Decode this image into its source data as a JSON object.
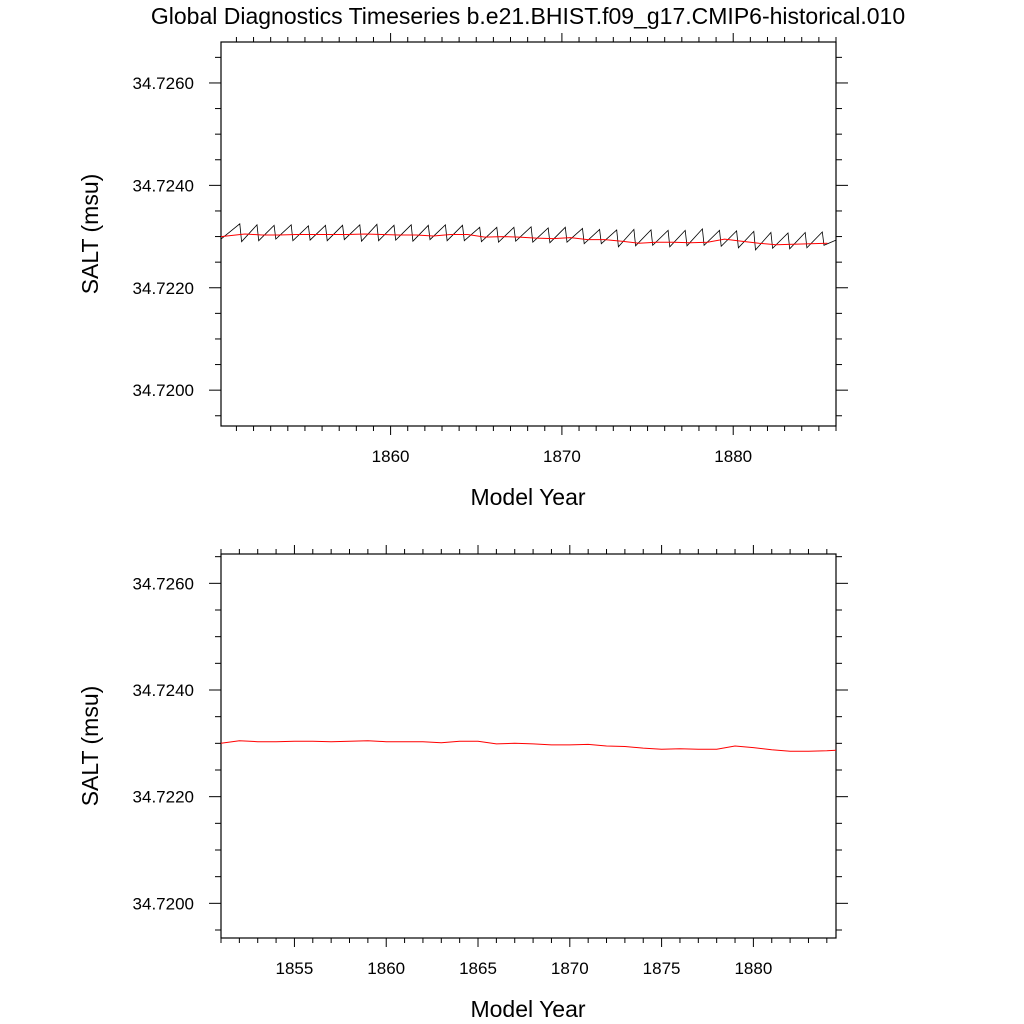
{
  "title": "Global Diagnostics Timeseries b.e21.BHIST.f09_g17.CMIP6-historical.010",
  "colors": {
    "monthly": "#000000",
    "annual": "#ff0000",
    "axes": "#000000"
  },
  "chart_data": [
    {
      "type": "line",
      "ylabel": "SALT (msu)",
      "xlabel": "Model Year",
      "xlim": [
        1850.1,
        1886.0
      ],
      "ylim": [
        34.7193,
        34.7268
      ],
      "xticks": [
        1860,
        1870,
        1880
      ],
      "xtick_labels": [
        "1860",
        "1870",
        "1880"
      ],
      "yticks": [
        34.72,
        34.722,
        34.724,
        34.726
      ],
      "ytick_labels": [
        "34.7200",
        "34.7220",
        "34.7240",
        "34.7260"
      ],
      "series": [
        {
          "kind": "monthly",
          "color": "#000000",
          "x": [
            1850.1,
            1851.2,
            1851.3,
            1852.2,
            1852.3,
            1853.2,
            1853.3,
            1854.2,
            1854.3,
            1855.2,
            1855.3,
            1856.2,
            1856.3,
            1857.2,
            1857.3,
            1858.2,
            1858.3,
            1859.2,
            1859.3,
            1860.2,
            1860.3,
            1861.2,
            1861.3,
            1862.2,
            1862.3,
            1863.2,
            1863.3,
            1864.2,
            1864.3,
            1865.2,
            1865.3,
            1866.2,
            1866.3,
            1867.2,
            1867.3,
            1868.2,
            1868.3,
            1869.2,
            1869.3,
            1870.2,
            1870.3,
            1871.2,
            1871.3,
            1872.2,
            1872.3,
            1873.2,
            1873.3,
            1874.2,
            1874.3,
            1875.2,
            1875.3,
            1876.2,
            1876.3,
            1877.2,
            1877.3,
            1878.2,
            1878.3,
            1879.2,
            1879.3,
            1880.2,
            1880.3,
            1881.2,
            1881.3,
            1882.2,
            1882.3,
            1883.2,
            1883.3,
            1884.2,
            1884.3,
            1885.2,
            1885.3,
            1886.0
          ],
          "y": [
            34.72295,
            34.72325,
            34.7229,
            34.72323,
            34.72292,
            34.72322,
            34.72295,
            34.72323,
            34.72292,
            34.72321,
            34.72293,
            34.72322,
            34.72292,
            34.72322,
            34.72294,
            34.72323,
            34.72291,
            34.72324,
            34.72292,
            34.72322,
            34.72293,
            34.72323,
            34.72291,
            34.72322,
            34.72294,
            34.72323,
            34.72292,
            34.72322,
            34.72292,
            34.72318,
            34.7229,
            34.72318,
            34.72289,
            34.72318,
            34.72291,
            34.72319,
            34.72289,
            34.72317,
            34.72288,
            34.72318,
            34.72289,
            34.72316,
            34.72286,
            34.72314,
            34.72286,
            34.72313,
            34.7228,
            34.72314,
            34.72282,
            34.72313,
            34.72283,
            34.72312,
            34.7228,
            34.72312,
            34.72282,
            34.72315,
            34.72283,
            34.72312,
            34.72281,
            34.72311,
            34.72278,
            34.7231,
            34.72274,
            34.72308,
            34.72277,
            34.72307,
            34.72276,
            34.72308,
            34.72278,
            34.72309,
            34.72283,
            34.72293
          ]
        },
        {
          "kind": "annual",
          "color": "#ff0000",
          "x": [
            1850.1,
            1851.5,
            1852.5,
            1853.5,
            1854.5,
            1855.5,
            1856.5,
            1857.5,
            1858.5,
            1859.5,
            1860.5,
            1861.5,
            1862.5,
            1863.5,
            1864.5,
            1865.5,
            1866.5,
            1867.5,
            1868.5,
            1869.5,
            1870.5,
            1871.5,
            1872.5,
            1873.5,
            1874.5,
            1875.5,
            1876.5,
            1877.5,
            1878.5,
            1879.5,
            1880.5,
            1881.5,
            1882.5,
            1883.5,
            1884.5,
            1885.5
          ],
          "y": [
            34.723,
            34.72305,
            34.72303,
            34.72303,
            34.72304,
            34.72304,
            34.72304,
            34.72304,
            34.72305,
            34.72304,
            34.72303,
            34.72303,
            34.72301,
            34.72304,
            34.72304,
            34.72299,
            34.723,
            34.72299,
            34.72297,
            34.72296,
            34.72298,
            34.72294,
            34.72294,
            34.72291,
            34.72287,
            34.72289,
            34.72289,
            34.72288,
            34.72289,
            34.72295,
            34.72291,
            34.72287,
            34.72284,
            34.72285,
            34.72286,
            34.72287
          ]
        }
      ]
    },
    {
      "type": "line",
      "ylabel": "SALT (msu)",
      "xlabel": "Model Year",
      "xlim": [
        1851.0,
        1884.5
      ],
      "ylim": [
        34.71935,
        34.72655
      ],
      "xticks": [
        1855,
        1860,
        1865,
        1870,
        1875,
        1880
      ],
      "xtick_labels": [
        "1855",
        "1860",
        "1865",
        "1870",
        "1875",
        "1880"
      ],
      "yticks": [
        34.72,
        34.722,
        34.724,
        34.726
      ],
      "ytick_labels": [
        "34.7200",
        "34.7220",
        "34.7240",
        "34.7260"
      ],
      "series": [
        {
          "kind": "annual",
          "color": "#ff0000",
          "x": [
            1851.0,
            1852.0,
            1853.0,
            1854.0,
            1855.0,
            1856.0,
            1857.0,
            1858.0,
            1859.0,
            1860.0,
            1861.0,
            1862.0,
            1863.0,
            1864.0,
            1865.0,
            1866.0,
            1867.0,
            1868.0,
            1869.0,
            1870.0,
            1871.0,
            1872.0,
            1873.0,
            1874.0,
            1875.0,
            1876.0,
            1877.0,
            1878.0,
            1879.0,
            1880.0,
            1881.0,
            1882.0,
            1883.0,
            1884.0,
            1884.5
          ],
          "y": [
            34.723,
            34.72305,
            34.72303,
            34.72303,
            34.72304,
            34.72304,
            34.72303,
            34.72304,
            34.72305,
            34.72303,
            34.72303,
            34.72303,
            34.72301,
            34.72304,
            34.72304,
            34.72299,
            34.723,
            34.72299,
            34.72297,
            34.72297,
            34.72298,
            34.72295,
            34.72294,
            34.72291,
            34.72289,
            34.7229,
            34.72289,
            34.72289,
            34.72295,
            34.72292,
            34.72288,
            34.72285,
            34.72285,
            34.72286,
            34.72287
          ]
        }
      ]
    }
  ]
}
